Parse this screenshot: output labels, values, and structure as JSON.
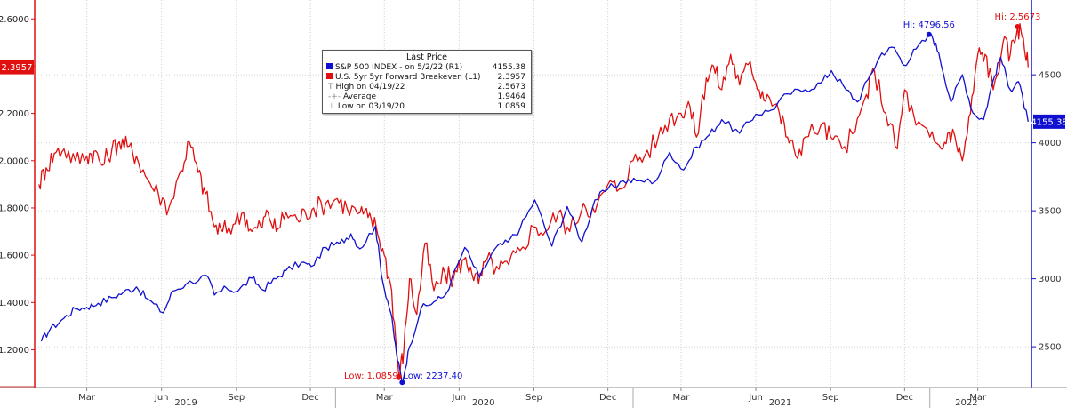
{
  "chart_data": {
    "type": "line",
    "legend": {
      "header": "Last Price",
      "entries": [
        {
          "name": "S&P 500 INDEX -  on 5/2/22  (R1)",
          "value": "4155.38",
          "color": "#1010d0",
          "axis": "right"
        },
        {
          "name": "U.S. 5yr 5yr Forward Breakeven  (L1)",
          "value": "2.3957",
          "color": "#e01010",
          "axis": "left"
        },
        {
          "name": "High on 04/19/22",
          "value": "2.5673",
          "marker": "T"
        },
        {
          "name": "Average",
          "value": "1.9464",
          "marker": "-+-"
        },
        {
          "name": "Low on 03/19/20",
          "value": "1.0859",
          "marker": "⊥"
        }
      ]
    },
    "x_axis": {
      "range": [
        "2018-12-28",
        "2022-05-06"
      ],
      "month_ticks": [
        {
          "date": "2019-03-01",
          "label": "Mar"
        },
        {
          "date": "2019-06-01",
          "label": "Jun"
        },
        {
          "date": "2019-09-01",
          "label": "Sep"
        },
        {
          "date": "2019-12-01",
          "label": "Dec"
        },
        {
          "date": "2020-03-01",
          "label": "Mar"
        },
        {
          "date": "2020-06-01",
          "label": "Jun"
        },
        {
          "date": "2020-09-01",
          "label": "Sep"
        },
        {
          "date": "2020-12-01",
          "label": "Dec"
        },
        {
          "date": "2021-03-01",
          "label": "Mar"
        },
        {
          "date": "2021-06-01",
          "label": "Jun"
        },
        {
          "date": "2021-09-01",
          "label": "Sep"
        },
        {
          "date": "2021-12-01",
          "label": "Dec"
        },
        {
          "date": "2022-03-01",
          "label": "Mar"
        }
      ],
      "year_labels": [
        {
          "date": "2019-07-01",
          "label": "2019"
        },
        {
          "date": "2020-07-01",
          "label": "2020"
        },
        {
          "date": "2021-07-01",
          "label": "2021"
        },
        {
          "date": "2022-02-15",
          "label": "2022"
        }
      ]
    },
    "left_axis": {
      "range": [
        1.04,
        2.68
      ],
      "color": "#e01010",
      "ticks": [
        "1.2000",
        "1.4000",
        "1.6000",
        "1.8000",
        "2.0000",
        "2.2000",
        "2.4000",
        "2.6000"
      ],
      "last_value_label": "2.3957",
      "last_value": 2.3957
    },
    "right_axis": {
      "range": [
        2200,
        5050
      ],
      "color": "#1010d0",
      "ticks": [
        "2500",
        "3000",
        "3500",
        "4000",
        "4500"
      ],
      "last_value_label": "4155.38",
      "last_value": 4155.38
    },
    "grid": true,
    "series": [
      {
        "name": "S&P 500 INDEX",
        "axis": "right",
        "color": "#1010d0",
        "x": [
          "2019-01-04",
          "2019-01-15",
          "2019-02-01",
          "2019-02-15",
          "2019-03-01",
          "2019-03-15",
          "2019-04-01",
          "2019-04-15",
          "2019-05-01",
          "2019-05-15",
          "2019-06-03",
          "2019-06-15",
          "2019-07-01",
          "2019-07-26",
          "2019-08-05",
          "2019-08-20",
          "2019-09-03",
          "2019-09-20",
          "2019-10-03",
          "2019-10-20",
          "2019-11-01",
          "2019-11-20",
          "2019-12-02",
          "2019-12-20",
          "2020-01-06",
          "2020-01-20",
          "2020-01-31",
          "2020-02-19",
          "2020-02-28",
          "2020-03-09",
          "2020-03-16",
          "2020-03-23",
          "2020-04-01",
          "2020-04-15",
          "2020-05-01",
          "2020-05-15",
          "2020-06-08",
          "2020-06-26",
          "2020-07-15",
          "2020-07-31",
          "2020-08-15",
          "2020-09-02",
          "2020-09-23",
          "2020-10-12",
          "2020-10-30",
          "2020-11-15",
          "2020-12-01",
          "2020-12-20",
          "2021-01-05",
          "2021-01-29",
          "2021-02-15",
          "2021-03-04",
          "2021-03-20",
          "2021-04-05",
          "2021-04-20",
          "2021-05-12",
          "2021-06-01",
          "2021-06-20",
          "2021-07-10",
          "2021-08-01",
          "2021-08-20",
          "2021-09-02",
          "2021-09-20",
          "2021-10-04",
          "2021-10-20",
          "2021-11-03",
          "2021-11-18",
          "2021-11-30",
          "2021-12-15",
          "2022-01-03",
          "2022-01-12",
          "2022-01-27",
          "2022-02-10",
          "2022-02-23",
          "2022-03-08",
          "2022-03-20",
          "2022-03-29",
          "2022-04-10",
          "2022-04-20",
          "2022-05-02"
        ],
        "y": [
          2540,
          2630,
          2710,
          2780,
          2790,
          2820,
          2860,
          2900,
          2940,
          2850,
          2750,
          2910,
          2960,
          3025,
          2880,
          2930,
          2910,
          3005,
          2920,
          3000,
          3060,
          3120,
          3090,
          3230,
          3260,
          3330,
          3220,
          3386,
          2980,
          2750,
          2450,
          2237,
          2500,
          2780,
          2830,
          2880,
          3230,
          3010,
          3220,
          3270,
          3370,
          3580,
          3240,
          3530,
          3270,
          3580,
          3660,
          3720,
          3720,
          3720,
          3930,
          3800,
          3970,
          4060,
          4170,
          4070,
          4210,
          4240,
          4360,
          4390,
          4440,
          4530,
          4390,
          4300,
          4500,
          4660,
          4700,
          4570,
          4690,
          4796,
          4660,
          4300,
          4500,
          4220,
          4170,
          4460,
          4630,
          4390,
          4450,
          4155
        ]
      },
      {
        "name": "U.S. 5yr 5yr Forward Breakeven",
        "axis": "left",
        "color": "#e01010",
        "x": [
          "2019-01-01",
          "2019-01-10",
          "2019-01-20",
          "2019-02-01",
          "2019-02-15",
          "2019-03-01",
          "2019-03-10",
          "2019-03-20",
          "2019-04-01",
          "2019-04-10",
          "2019-04-20",
          "2019-05-01",
          "2019-05-15",
          "2019-05-28",
          "2019-06-10",
          "2019-06-25",
          "2019-07-05",
          "2019-07-16",
          "2019-07-25",
          "2019-08-05",
          "2019-08-15",
          "2019-08-28",
          "2019-09-10",
          "2019-09-20",
          "2019-10-01",
          "2019-10-10",
          "2019-10-20",
          "2019-11-01",
          "2019-11-15",
          "2019-11-25",
          "2019-12-05",
          "2019-12-20",
          "2020-01-03",
          "2020-01-15",
          "2020-01-31",
          "2020-02-10",
          "2020-02-20",
          "2020-03-01",
          "2020-03-10",
          "2020-03-19",
          "2020-03-25",
          "2020-04-01",
          "2020-04-10",
          "2020-04-20",
          "2020-05-01",
          "2020-05-15",
          "2020-05-25",
          "2020-06-05",
          "2020-06-15",
          "2020-06-25",
          "2020-07-05",
          "2020-07-20",
          "2020-08-01",
          "2020-08-15",
          "2020-09-01",
          "2020-09-15",
          "2020-10-01",
          "2020-10-15",
          "2020-11-01",
          "2020-11-15",
          "2020-12-01",
          "2020-12-15",
          "2021-01-01",
          "2021-01-15",
          "2021-02-01",
          "2021-02-15",
          "2021-03-01",
          "2021-03-10",
          "2021-03-20",
          "2021-04-01",
          "2021-04-10",
          "2021-04-20",
          "2021-05-01",
          "2021-05-12",
          "2021-05-25",
          "2021-06-05",
          "2021-06-15",
          "2021-06-30",
          "2021-07-10",
          "2021-07-20",
          "2021-08-01",
          "2021-08-20",
          "2021-09-01",
          "2021-09-15",
          "2021-10-01",
          "2021-10-15",
          "2021-10-25",
          "2021-11-08",
          "2021-11-22",
          "2021-12-01",
          "2021-12-15",
          "2022-01-01",
          "2022-01-15",
          "2022-01-25",
          "2022-02-01",
          "2022-02-10",
          "2022-02-20",
          "2022-03-01",
          "2022-03-10",
          "2022-03-20",
          "2022-04-01",
          "2022-04-10",
          "2022-04-19",
          "2022-04-26",
          "2022-05-02"
        ],
        "y": [
          1.9,
          1.97,
          2.03,
          2.05,
          2.0,
          2.02,
          2.04,
          1.98,
          2.05,
          2.08,
          2.06,
          2.02,
          1.92,
          1.86,
          1.8,
          1.96,
          2.08,
          1.95,
          1.86,
          1.72,
          1.7,
          1.73,
          1.78,
          1.7,
          1.72,
          1.78,
          1.7,
          1.78,
          1.75,
          1.78,
          1.8,
          1.82,
          1.84,
          1.8,
          1.78,
          1.76,
          1.72,
          1.6,
          1.45,
          1.0859,
          1.2,
          1.5,
          1.35,
          1.65,
          1.45,
          1.52,
          1.5,
          1.58,
          1.55,
          1.48,
          1.58,
          1.54,
          1.56,
          1.62,
          1.72,
          1.7,
          1.78,
          1.7,
          1.82,
          1.78,
          1.9,
          1.88,
          2.0,
          2.02,
          2.1,
          2.18,
          2.2,
          2.25,
          2.1,
          2.35,
          2.4,
          2.3,
          2.45,
          2.32,
          2.42,
          2.3,
          2.28,
          2.2,
          2.1,
          2.02,
          2.1,
          2.15,
          2.1,
          2.05,
          2.12,
          2.28,
          2.38,
          2.2,
          2.05,
          2.3,
          2.15,
          2.1,
          2.05,
          2.12,
          2.1,
          2.0,
          2.2,
          2.45,
          2.45,
          2.3,
          2.5,
          2.45,
          2.5673,
          2.52,
          2.3957
        ]
      }
    ],
    "annotations": [
      {
        "text": "Hi: 4796.56",
        "date": "2021-12-31",
        "value": 4796.56,
        "axis": "right",
        "color": "#1010d0"
      },
      {
        "text": "Hi: 2.5673",
        "date": "2022-04-19",
        "value": 2.5673,
        "axis": "left",
        "color": "#e01010"
      },
      {
        "text": "Low: 1.0859",
        "date": "2020-03-19",
        "value": 1.0859,
        "axis": "left",
        "color": "#e01010"
      },
      {
        "text": "Low: 2237.40",
        "date": "2020-03-23",
        "value": 2237.4,
        "axis": "right",
        "color": "#1010d0"
      }
    ]
  }
}
